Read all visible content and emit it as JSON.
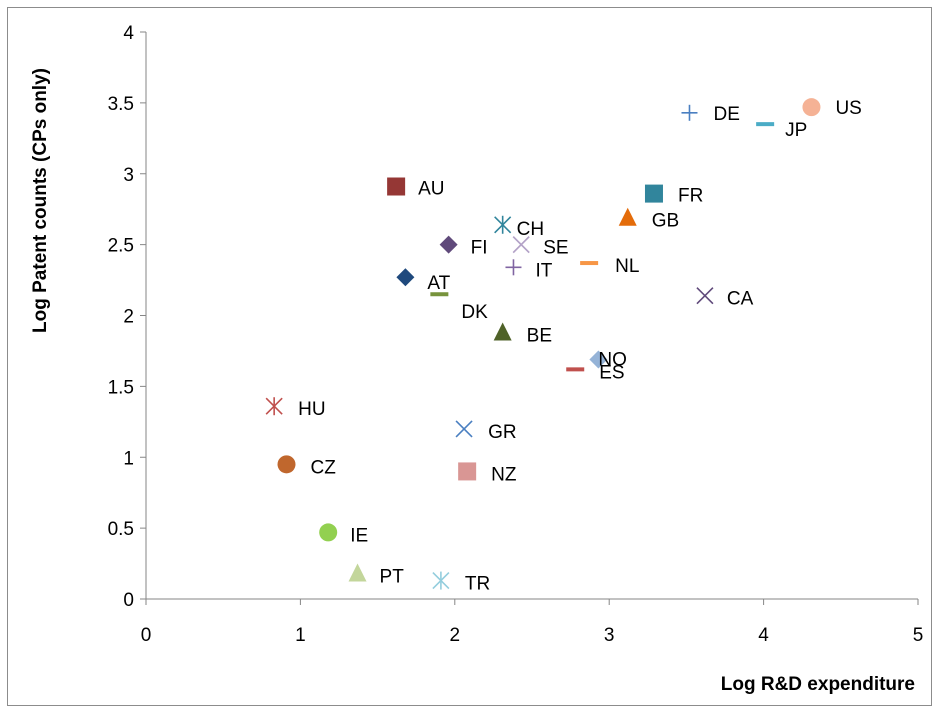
{
  "chart_data": {
    "type": "scatter",
    "title": "",
    "xlabel": "Log R&D expenditure",
    "ylabel": "Log Patent counts (CPs only)",
    "xlim": [
      0,
      5
    ],
    "ylim": [
      0,
      4
    ],
    "x_ticks": [
      "0",
      "1",
      "2",
      "3",
      "4",
      "5"
    ],
    "y_ticks": [
      "0",
      "0.5",
      "1",
      "1.5",
      "2",
      "2.5",
      "3",
      "3.5",
      "4"
    ],
    "grid": false,
    "legend": "none",
    "points": [
      {
        "label": "US",
        "x": 4.31,
        "y": 3.47,
        "marker": "circle",
        "color": "#f5b295"
      },
      {
        "label": "DE",
        "x": 3.52,
        "y": 3.43,
        "marker": "plus",
        "color": "#4a7fc1"
      },
      {
        "label": "JP",
        "x": 4.01,
        "y": 3.35,
        "marker": "dash",
        "color": "#4bacc6"
      },
      {
        "label": "AU",
        "x": 1.62,
        "y": 2.91,
        "marker": "square",
        "color": "#953735"
      },
      {
        "label": "FR",
        "x": 3.29,
        "y": 2.86,
        "marker": "square",
        "color": "#31859c"
      },
      {
        "label": "GB",
        "x": 3.12,
        "y": 2.69,
        "marker": "triangle",
        "color": "#e46c0a"
      },
      {
        "label": "CH",
        "x": 2.31,
        "y": 2.64,
        "marker": "asterisk",
        "color": "#31859c"
      },
      {
        "label": "FI",
        "x": 1.96,
        "y": 2.5,
        "marker": "diamond",
        "color": "#604a7b"
      },
      {
        "label": "SE",
        "x": 2.43,
        "y": 2.5,
        "marker": "x",
        "color": "#b3a2c7"
      },
      {
        "label": "NL",
        "x": 2.87,
        "y": 2.37,
        "marker": "dash",
        "color": "#f79646"
      },
      {
        "label": "IT",
        "x": 2.38,
        "y": 2.34,
        "marker": "plus",
        "color": "#8064a2"
      },
      {
        "label": "AT",
        "x": 1.68,
        "y": 2.27,
        "marker": "diamond",
        "color": "#1f497d"
      },
      {
        "label": "DK",
        "x": 1.9,
        "y": 2.15,
        "marker": "dash",
        "color": "#77933c"
      },
      {
        "label": "CA",
        "x": 3.62,
        "y": 2.14,
        "marker": "x",
        "color": "#604a7b"
      },
      {
        "label": "BE",
        "x": 2.31,
        "y": 1.88,
        "marker": "triangle",
        "color": "#4f6228"
      },
      {
        "label": "NO",
        "x": 2.93,
        "y": 1.69,
        "marker": "diamond",
        "color": "#95b3d7"
      },
      {
        "label": "ES",
        "x": 2.78,
        "y": 1.62,
        "marker": "dash",
        "color": "#c0504d"
      },
      {
        "label": "HU",
        "x": 0.83,
        "y": 1.36,
        "marker": "asterisk",
        "color": "#c0504d"
      },
      {
        "label": "GR",
        "x": 2.06,
        "y": 1.2,
        "marker": "x",
        "color": "#4a7fc1"
      },
      {
        "label": "CZ",
        "x": 0.91,
        "y": 0.95,
        "marker": "circle",
        "color": "#c0672d"
      },
      {
        "label": "NZ",
        "x": 2.08,
        "y": 0.9,
        "marker": "square",
        "color": "#d99694"
      },
      {
        "label": "IE",
        "x": 1.18,
        "y": 0.47,
        "marker": "circle",
        "color": "#92d050"
      },
      {
        "label": "PT",
        "x": 1.37,
        "y": 0.18,
        "marker": "triangle",
        "color": "#c3d69b"
      },
      {
        "label": "TR",
        "x": 1.91,
        "y": 0.13,
        "marker": "asterisk",
        "color": "#93cddd"
      }
    ]
  }
}
